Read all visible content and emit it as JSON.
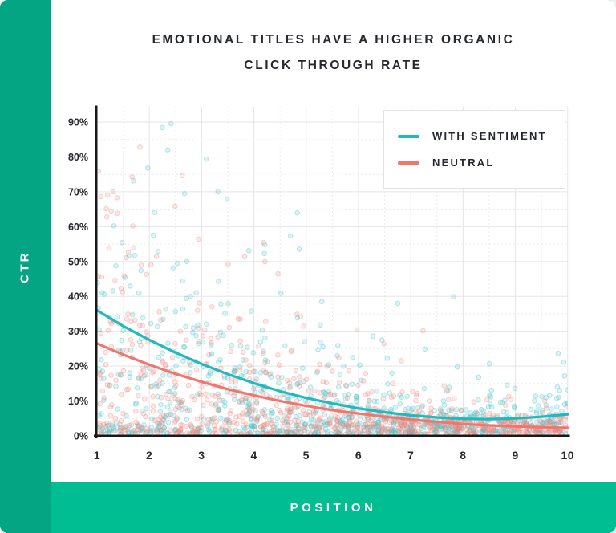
{
  "card": {
    "title_line1": "EMOTIONAL TITLES HAVE A HIGHER ORGANIC",
    "title_line2": "CLICK THROUGH RATE",
    "colors": {
      "sidebar_green": "#04A583",
      "bottom_bar_green": "#00BD92",
      "card_bg": "#FFFFFF",
      "title_text": "#25282C",
      "axis_black": "#17191B",
      "grid_major": "#E5E5E5",
      "grid_minor": "#ECECEC"
    }
  },
  "chart_data": {
    "type": "scatter",
    "title": "Emotional titles have a higher organic click through rate",
    "xlabel": "POSITION",
    "ylabel": "CTR",
    "xlim": [
      1,
      10
    ],
    "ylim": [
      0,
      94
    ],
    "grid": "major solid at integer positions and 10% steps; minor dashed at half positions and 5% steps",
    "legend_position": "top-right",
    "x_ticks": [
      {
        "v": 1,
        "label": "1"
      },
      {
        "v": 2,
        "label": "2"
      },
      {
        "v": 3,
        "label": "3"
      },
      {
        "v": 4,
        "label": "4"
      },
      {
        "v": 5,
        "label": "5"
      },
      {
        "v": 6,
        "label": "6"
      },
      {
        "v": 7,
        "label": "7"
      },
      {
        "v": 8,
        "label": "8"
      },
      {
        "v": 9,
        "label": "9"
      },
      {
        "v": 10,
        "label": "10"
      }
    ],
    "y_ticks": [
      {
        "v": 0,
        "label": "0%"
      },
      {
        "v": 10,
        "label": "10%"
      },
      {
        "v": 20,
        "label": "20%"
      },
      {
        "v": 30,
        "label": "30%"
      },
      {
        "v": 40,
        "label": "40%"
      },
      {
        "v": 50,
        "label": "50%"
      },
      {
        "v": 60,
        "label": "60%"
      },
      {
        "v": 70,
        "label": "70%"
      },
      {
        "v": 80,
        "label": "80%"
      },
      {
        "v": 90,
        "label": "90%"
      }
    ],
    "trend_positions": [
      1,
      1.5,
      2,
      2.5,
      3,
      3.5,
      4,
      4.5,
      5,
      5.5,
      6,
      6.5,
      7,
      7.5,
      8,
      8.5,
      9,
      9.5,
      10
    ],
    "series": [
      {
        "name": "WITH SENTIMENT",
        "color": "#1FB9BE",
        "trend_ctr_pct": [
          36.0,
          31.5,
          27.5,
          23.9,
          20.6,
          17.7,
          15.1,
          12.8,
          10.9,
          9.3,
          7.9,
          6.8,
          5.9,
          5.3,
          4.9,
          4.8,
          5.0,
          5.5,
          6.2
        ],
        "scatter": {
          "seed": 7,
          "n_cloud": 560,
          "n_floor": 300,
          "sigma": 0.72,
          "dot_color": "#3FC2C9"
        }
      },
      {
        "name": "NEUTRAL",
        "color": "#F4756C",
        "trend_ctr_pct": [
          26.5,
          23.3,
          20.4,
          17.8,
          15.5,
          13.4,
          11.6,
          10.0,
          8.6,
          7.4,
          6.4,
          5.5,
          4.7,
          4.0,
          3.4,
          3.0,
          2.7,
          2.5,
          2.3
        ],
        "scatter": {
          "seed": 13,
          "n_cloud": 560,
          "n_floor": 300,
          "sigma": 0.72,
          "dot_color": "#F0857B"
        }
      }
    ]
  }
}
